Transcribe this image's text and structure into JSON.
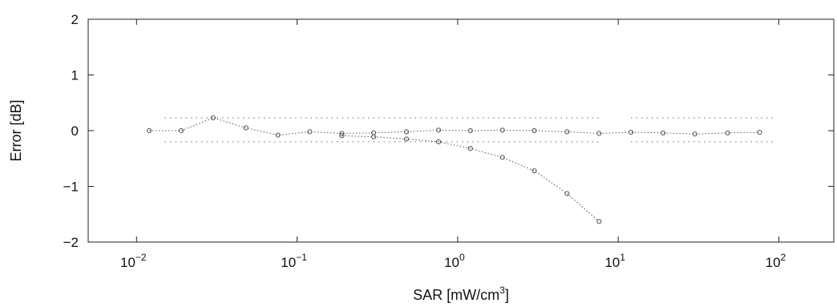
{
  "chart_data": {
    "type": "line",
    "title": "",
    "xlabel": "SAR [mW/cm",
    "xlabel_exp": "3",
    "xlabel_close": "]",
    "ylabel": "Error [dB]",
    "xscale": "log",
    "xlim": [
      0.005,
      220
    ],
    "ylim": [
      -2,
      2
    ],
    "xticks": [
      {
        "base": "10",
        "exp": "−2",
        "value": 0.01
      },
      {
        "base": "10",
        "exp": "−1",
        "value": 0.1
      },
      {
        "base": "10",
        "exp": "0",
        "value": 1
      },
      {
        "base": "10",
        "exp": "1",
        "value": 10
      },
      {
        "base": "10",
        "exp": "2",
        "value": 100
      }
    ],
    "yticks": [
      {
        "label": "2",
        "value": 2
      },
      {
        "label": "1",
        "value": 1
      },
      {
        "label": "0",
        "value": 0
      },
      {
        "label": "−1",
        "value": -1
      },
      {
        "label": "−2",
        "value": -2
      }
    ],
    "grid": false,
    "series": [
      {
        "x": [
          0.012,
          0.019,
          0.03,
          0.048,
          0.076,
          0.12,
          0.19,
          0.3,
          0.48,
          0.76,
          1.2,
          1.9,
          3.0,
          4.8,
          7.6,
          12.0,
          19.0,
          30.0,
          48.0,
          76.0
        ],
        "y": [
          0.0,
          0.0,
          0.23,
          0.05,
          -0.08,
          -0.02,
          -0.05,
          -0.04,
          -0.02,
          0.01,
          0.0,
          0.01,
          0.0,
          -0.02,
          -0.05,
          -0.03,
          -0.04,
          -0.06,
          -0.04,
          -0.03
        ],
        "color": "#555555"
      },
      {
        "x": [
          0.19,
          0.3,
          0.48,
          0.76,
          1.2,
          1.9,
          3.0,
          4.8,
          7.6
        ],
        "y": [
          -0.09,
          -0.11,
          -0.15,
          -0.2,
          -0.32,
          -0.48,
          -0.72,
          -1.13,
          -1.63
        ],
        "color": "#555555"
      }
    ],
    "bands": [
      {
        "x": [
          0.015,
          7.6
        ],
        "y": 0.23
      },
      {
        "x": [
          12.0,
          95.0
        ],
        "y": 0.23
      },
      {
        "x": [
          0.015,
          7.6
        ],
        "y": -0.2
      },
      {
        "x": [
          12.0,
          95.0
        ],
        "y": -0.2
      }
    ]
  }
}
